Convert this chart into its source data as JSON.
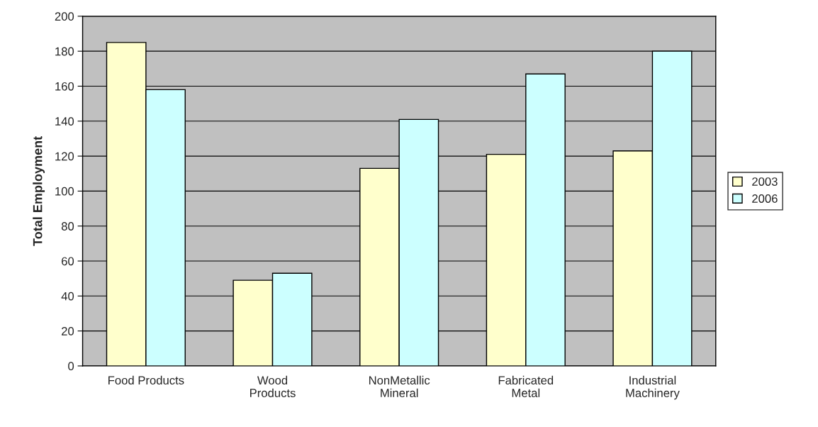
{
  "chart_data": {
    "type": "bar",
    "ylabel": "Total Employment",
    "categories": [
      "Food Products",
      "Wood\nProducts",
      "NonMetallic\nMineral",
      "Fabricated\nMetal",
      "Industrial\nMachinery"
    ],
    "series": [
      {
        "name": "2003",
        "color": "#ffffcc",
        "values": [
          185,
          49,
          113,
          121,
          123
        ]
      },
      {
        "name": "2006",
        "color": "#ccffff",
        "values": [
          158,
          53,
          141,
          167,
          180
        ]
      }
    ],
    "ylim": [
      0,
      200
    ],
    "yticks": [
      0,
      20,
      40,
      60,
      80,
      100,
      120,
      140,
      160,
      180,
      200
    ],
    "grid": "y",
    "legend": "right"
  }
}
